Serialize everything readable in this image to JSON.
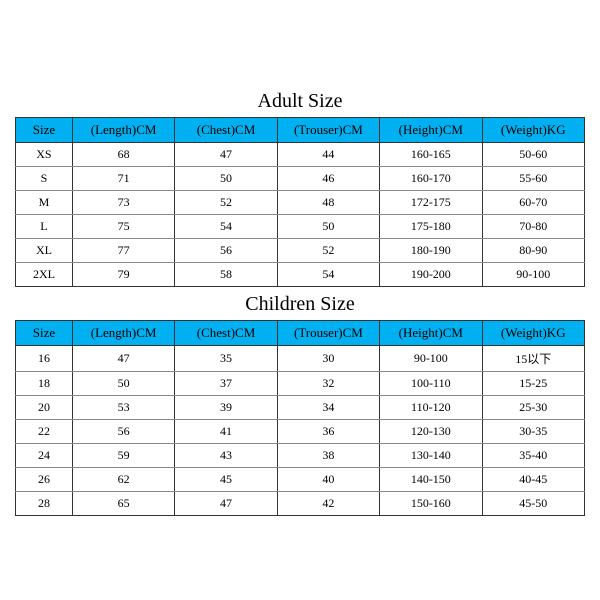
{
  "header_bg": "#00b0f0",
  "border_color": "#333333",
  "row_border_color": "#888888",
  "text_color": "#000000",
  "title_fontsize": 20,
  "header_fontsize": 13,
  "cell_fontsize": 12,
  "adult": {
    "title": "Adult Size",
    "columns": [
      "Size",
      "(Length)CM",
      "(Chest)CM",
      "(Trouser)CM",
      "(Height)CM",
      "(Weight)KG"
    ],
    "rows": [
      [
        "XS",
        "68",
        "47",
        "44",
        "160-165",
        "50-60"
      ],
      [
        "S",
        "71",
        "50",
        "46",
        "160-170",
        "55-60"
      ],
      [
        "M",
        "73",
        "52",
        "48",
        "172-175",
        "60-70"
      ],
      [
        "L",
        "75",
        "54",
        "50",
        "175-180",
        "70-80"
      ],
      [
        "XL",
        "77",
        "56",
        "52",
        "180-190",
        "80-90"
      ],
      [
        "2XL",
        "79",
        "58",
        "54",
        "190-200",
        "90-100"
      ]
    ]
  },
  "children": {
    "title": "Children Size",
    "columns": [
      "Size",
      "(Length)CM",
      "(Chest)CM",
      "(Trouser)CM",
      "(Height)CM",
      "(Weight)KG"
    ],
    "rows": [
      [
        "16",
        "47",
        "35",
        "30",
        "90-100",
        "15以下"
      ],
      [
        "18",
        "50",
        "37",
        "32",
        "100-110",
        "15-25"
      ],
      [
        "20",
        "53",
        "39",
        "34",
        "110-120",
        "25-30"
      ],
      [
        "22",
        "56",
        "41",
        "36",
        "120-130",
        "30-35"
      ],
      [
        "24",
        "59",
        "43",
        "38",
        "130-140",
        "35-40"
      ],
      [
        "26",
        "62",
        "45",
        "40",
        "140-150",
        "40-45"
      ],
      [
        "28",
        "65",
        "47",
        "42",
        "150-160",
        "45-50"
      ]
    ]
  }
}
